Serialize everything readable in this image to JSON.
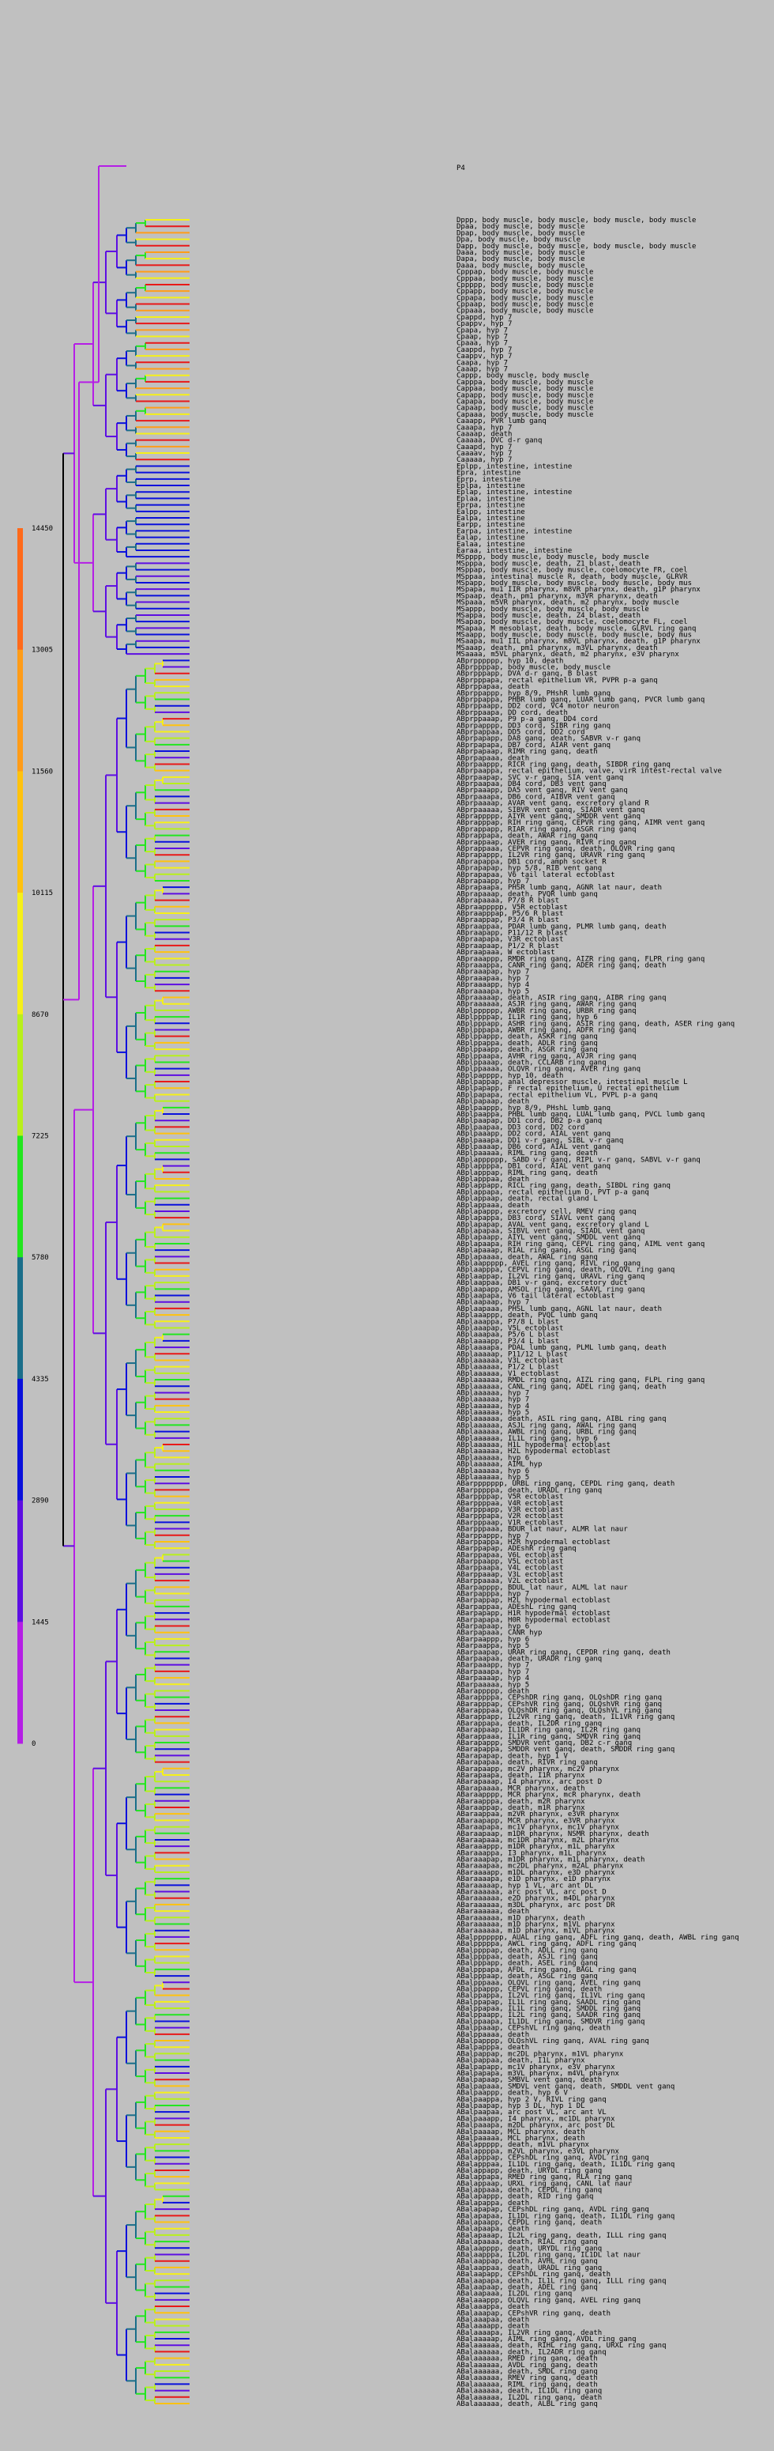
{
  "root_label": "P4",
  "legend": {
    "ticks": [
      "14450",
      "13005",
      "11560",
      "10115",
      "8670",
      "7225",
      "5780",
      "4335",
      "2890",
      "1445",
      "0"
    ],
    "bands": [
      "#ff6a1a",
      "#ff9c18",
      "#ffc20e",
      "#f5f019",
      "#b8f01b",
      "#22e61f",
      "#1a6e8a",
      "#0a10dc",
      "#5d0ee2",
      "#b51ee6"
    ]
  },
  "leaf_names": [
    "Dppp, body muscle, body muscle, body muscle, body muscle",
    "Dpaa, body muscle, body muscle",
    "Dpap, body muscle, body muscle",
    "Dpa, body muscle, body muscle",
    "Dapp, body muscle, body muscle, body muscle, body muscle",
    "Daaa, body muscle, body muscle",
    "Dapa, body muscle, body muscle",
    "Daaa, body muscle, body muscle",
    "Cpppap, body muscle, body muscle",
    "Cpppaa, body muscle, body muscle",
    "Cppppp, body muscle, body muscle",
    "Cppapp, body muscle, body muscle",
    "Cppapa, body muscle, body muscle",
    "Cppaap, body muscle, body muscle",
    "Cppaaa, body muscle, body muscle",
    "Cpappd, hyp 7",
    "Cpappv, hyp 7",
    "Cpapa, hyp 7",
    "Cpaap, hyp 7",
    "Cpaaa, hyp 7",
    "Caappd, hyp 7",
    "Caappv, hyp 7",
    "Caapa, hyp 7",
    "Caaap, hyp 7",
    "Cappp, body muscle, body muscle",
    "Capppa, body muscle, body muscle",
    "Cappaa, body muscle, body muscle",
    "Capapp, body muscle, body muscle",
    "Capapa, body muscle, body muscle",
    "Capaap, body muscle, body muscle",
    "Capaaa, body muscle, body muscle",
    "Caaapp, PVR lumb ganq",
    "Caaapa, hyp 7",
    "Caaaap, death",
    "Caaaaa, DVC d-r ganq",
    "Caaapd, hyp 7",
    "Caaaav, hyp 7",
    "Caaaaa, hyp 7",
    "Eplpp, intestine, intestine",
    "Epra, intestine",
    "Eprp, intestine",
    "Eplpa, intestine",
    "Eplap, intestine, intestine",
    "Eplaa, intestine",
    "Eprpa, intestine",
    "Ealpp, intestine",
    "Ealpa, intestine",
    "Earpp, intestine",
    "Earpa, intestine, intestine",
    "Ealap, intestine",
    "Ealaa, intestine",
    "Earaa, intestine, intestine",
    "MSpppp, body muscle, body muscle, body muscle",
    "MSpppa, body muscle, death, Z1 blast, death",
    "MSppap, body muscle, body muscle, coelomocyte FR, coel",
    "MSppaa, intestinal muscle R, death, body muscle, GLRVR",
    "MSpapp, body muscle, body muscle, body muscle, body mus",
    "MSpapa, mu1 IIR pharynx, m8VR pharynx, death, g1P pharynx",
    "MSpaap, death, pm1 pharynx, m3VR pharynx, death",
    "MSpaaa, m5VR pharynx, death, m2 pharynx, body muscle",
    "MSappp, body muscle, body muscle, body muscle",
    "MSappa, body muscle, death, Z4 blast, death",
    "MSapap, body muscle, body muscle, coelomocyte FL, coel",
    "MSapaa, M mesoblast, death, body muscle, GLRVL ring ganq",
    "MSaapp, body muscle, body muscle, body muscle, body mus",
    "MSaapa, mu1 IIL pharynx, m8VL pharynx, death, g1P pharynx",
    "MSaaap, death, pm1 pharynx, m3VL pharynx, death",
    "MSaaaa, m5VL pharynx, death, m2 pharynx, e3V pharynx",
    "ABprpppppp, hyp 10, death",
    "ABprppppap, body muscle, body muscle",
    "ABprpppapp, DVA d-r ganq, B blast",
    "ABprpppapa, rectal epithelium VR, PVPR p-a ganq",
    "ABprppapaa, death",
    "ABprppappp, hyp 8/9, PHshR lumb ganq",
    "ABprppappa, PHBR lumb ganq, LUAR lumb ganq, PVCR lumb ganq",
    "ABprppaapp, DD2 cord, VC4 motor neuron",
    "ABprppaapa, DD cord, death",
    "ABprppaaap, P9 p-a ganq, DD4 cord",
    "ABprpapppp, DD3 cord, SIBR ring ganq",
    "ABprpappaa, DD5 cord, DD2 cord",
    "ABprpapapp, DA8 ganq, death, SABVR v-r ganq",
    "ABprpapapa, DB7 cord, AIAR vent ganq",
    "ABprpapaap, RIMR ring ganq, death",
    "ABprpapaaa, death",
    "ABprpaappp, RICR ring ganq, death, SIBDR ring ganq",
    "ABprpaappa, rectal epithelium, valve, virR intest-rectal valve",
    "ABprpaapap, SVC v-r ganq, SIA vent ganq",
    "ABprpaapaa, DB4 cord, DB3 vent ganq",
    "ABprpaaapp, DA5 vent ganq, RIV vent ganq",
    "ABprpaaapa, DB6 cord, AIBVR vent ganq",
    "ABprpaaaap, AVAR vent ganq, excretory gland R",
    "ABprpaaaaa, SIBVR vent ganq, SIADR vent ganq",
    "ABprappppp, AIYR vent ganq, SMDDR vent ganq",
    "ABprapppap, RIH ring ganq, CEPVR ring ganq, AIMR vent ganq",
    "ABprappapp, RIAR ring ganq, ASGR ring ganq",
    "ABprappapa, death, AWAR ring ganq",
    "ABprappaap, AVER ring ganq, RIVR ring ganq",
    "ABprappaaa, CEPVR ring ganq, death, OLQVR ring ganq",
    "ABprapappp, IL2VR ring ganq, URAVR ring ganq",
    "ABprapappa, DB1 cord, amph socket R",
    "ABprapapap, hyp 5/8, RIB vent ganq",
    "ABprapapaa, V6 tail lateral ectoblast",
    "ABprapaapp, hyp 7",
    "ABprapaapa, PHSR lumb ganq, AGNR lat naur, death",
    "ABprapaaap, death, PVQR lumb ganq",
    "ABprapaaaa, P7/8 R blast",
    "ABpraappppp, V5R ectoblast",
    "ABpraapppap, P5/6 R blast",
    "ABpraappap, P3/4 R blast",
    "ABpraappaa, PDAR lumb ganq, PLMR lumb ganq, death",
    "ABpraapapp, P11/12 R blast",
    "ABpraapapa, V3R ectoblast",
    "ABpraapaap, P1/2 R blast",
    "ABpraapaaa, W ectoblast",
    "ABpraaappp, RMDR ring ganq, AIZR ring ganq, FLPR ring ganq",
    "ABpraaappa, CANR ring ganq, ADER ring ganq, death",
    "ABpraaapap, hyp 7",
    "ABpraaapaa, hyp 7",
    "ABpraaaapp, hyp 4",
    "ABpraaaapa, hyp 5",
    "ABpraaaaap, death, ASIR ring ganq, AIBR ring ganq",
    "ABpraaaaaa, ASJR ring ganq, AWAR ring ganq",
    "ABplpppppp, AWBR ring ganq, URBR ring ganq",
    "ABplppppap, IL1R ring ganq, hyp 6",
    "ABplpppapp, ASHR ring ganq, ASIR ring ganq, death, ASER ring ganq",
    "ABplpppapa, AWBR ring ganq, ADFR ring ganq",
    "ABplppappp, death, ASKR ring ganq",
    "ABplppappa, death, ADLR ring ganq",
    "ABplppaapp, death, ASGR ring ganq",
    "ABplppaapa, AVHR ring ganq, AVJR ring ganq",
    "ABplppaaap, death, CCLARB ring ganq",
    "ABplppaaaa, OLQVR ring ganq, AVER ring ganq",
    "ABplpapppp, hyp 10, death",
    "ABplpappap, anal depressor muscle, intestinal muscle L",
    "ABplpapapp, F rectal epithelium, U rectal epithelium",
    "ABplpapapa, rectal epithelium VL, PVPL p-a ganq",
    "ABplpapaap, death",
    "ABplpaappp, hyp 8/9, PHshL lumb ganq",
    "ABplpaappa, PHBL lumb ganq, LUAL lumb ganq, PVCL lumb ganq",
    "ABplpaapap, DD1 cord, DB2 p-a ganq",
    "ABplpaapaa, DD3 cord, DD2 cord",
    "ABplpaaapp, DD2 cord, AIAL vent ganq",
    "ABplpaaapa, DD1 v-r ganq, SIBL v-r ganq",
    "ABplpaaaap, DB6 cord, AIAL vent ganq",
    "ABplpaaaaa, RIML ring ganq, death",
    "ABplapppppp, SABD v-r ganq, RIPL v-r ganq, SABVL v-r ganq",
    "ABplappppa, DB1 cord, AIAL vent ganq",
    "ABplapppap, RIML ring ganq, death",
    "ABplapppaa, death",
    "ABplappapp, RICL ring ganq, death, SIBDL ring ganq",
    "ABplappapa, rectal epithelium D, PVT p-a ganq",
    "ABplappaap, death, rectal gland L",
    "ABplappaaa, death",
    "ABplapappp, excretory cell, RMEV ring ganq",
    "ABplapappa, DB3 cord, SIAVL vent ganq",
    "ABplapapap, AVAL vent ganq, excretory gland L",
    "ABplapapaa, SIBVL vent ganq, SIADL vent ganq",
    "ABplapaapp, AIYL vent ganq, SMDDL vent ganq",
    "ABplapaapa, RIH ring ganq, CEPVL ring ganq, AIML vent ganq",
    "ABplapaaap, RIAL ring ganq, ASGL ring ganq",
    "ABplapaaaa, death, AWAL ring ganq",
    "ABplaappppp, AVEL ring ganq, RIVL ring ganq",
    "ABplaapppa, CEPVL ring ganq, death, OLQVL ring ganq",
    "ABplaappap, IL2VL ring ganq, URAVL ring ganq",
    "ABplaappaa, DB1 v-r ganq, excretory duct",
    "ABplaapapp, AMSOL ring ganq, SAAVL ring ganq",
    "ABplaapapa, V6 tail lateral ectoblast",
    "ABplaapaap, hyp 7",
    "ABplaapaaa, PHSL lumb ganq, AGNL lat naur, death",
    "ABplaaappp, death, PVQL lumb ganq",
    "ABplaaappa, P7/8 L blast",
    "ABplaaapap, V5L ectoblast",
    "ABplaaapaa, P5/6 L blast",
    "ABplaaaapp, P3/4 L blast",
    "ABplaaaapa, PDAL lumb ganq, PLML lumb ganq, death",
    "ABplaaaaap, P11/12 L blast",
    "ABplaaaaaa, V3L ectoblast",
    "ABplaaaaaa, P1/2 L blast",
    "ABplaaaaaa, V1 ectoblast",
    "ABplaaaaaa, RMDL ring ganq, AIZL ring ganq, FLPL ring ganq",
    "ABplaaaaaa, CANL ring ganq, ADEL ring ganq, death",
    "ABplaaaaaa, hyp 7",
    "ABplaaaaaa, hyp 7",
    "ABplaaaaaa, hyp 4",
    "ABplaaaaaa, hyp 5",
    "ABplaaaaaa, death, ASIL ring ganq, AIBL ring ganq",
    "ABplaaaaaa, ASJL ring ganq, AWAL ring ganq",
    "ABplaaaaaa, AWBL ring ganq, URBL ring ganq",
    "ABplaaaaaa, IL1L ring ganq, hyp 6",
    "ABplaaaaaa, H1L hypodermal ectoblast",
    "ABplaaaaaa, H2L hypodermal ectoblast",
    "ABplaaaaaa, hyp 6",
    "ABplaaaaaa, AIML hyp",
    "ABplaaaaaa, hyp 6",
    "ABplaaaaaa, hyp 5",
    "ABarppppppp, URBL ring ganq, CEPDL ring ganq, death",
    "ABarpppppa, death, URADL ring ganq",
    "ABarppppap, V5R ectoblast",
    "ABarppppaa, V4R ectoblast",
    "ABarpppapp, V3R ectoblast",
    "ABarpppapa, V2R ectoblast",
    "ABarpppaap, V1R ectoblast",
    "ABarpppaaa, BDUR lat naur, ALMR lat naur",
    "ABarppappp, hyp 7",
    "ABarppappa, H2R hypodermal ectoblast",
    "ABarppapap, ADEshR ring ganq",
    "ABarppapaa, V6L ectoblast",
    "ABarppaapp, V5L ectoblast",
    "ABarppaapa, V4L ectoblast",
    "ABarppaaap, V3L ectoblast",
    "ABarppaaaa, V2L ectoblast",
    "ABarpapppp, BDUL lat naur, ALML lat naur",
    "ABarpapppa, hyp 7",
    "ABarpappap, H2L hypodermal ectoblast",
    "ABarpappaa, ADEshL ring ganq",
    "ABarpapapp, H1R hypodermal ectoblast",
    "ABarpapapa, H0R hypodermal ectoblast",
    "ABarpapaap, hyp 6",
    "ABarpapaaa, CANR hyp",
    "ABarpaappp, hyp 6",
    "ABarpaappa, hyp 5",
    "ABarpaapap, URAR ring ganq, CEPDR ring ganq, death",
    "ABarpaapaa, death, URADR ring ganq",
    "ABarpaaapp, hyp 7",
    "ABarpaaapa, hyp 7",
    "ABarpaaaap, hyp 4",
    "ABarpaaaaa, hyp 5",
    "ABarappppp, death",
    "ABarappppa, CEPshDR ring ganq, OLQshDR ring ganq",
    "ABarapppap, CEPshVR ring ganq, OLQshVR ring ganq",
    "ABarapppaa, OLQshDR ring ganq, OLQshVL ring ganq",
    "ABarappapp, IL2VR ring ganq, death, IL1VR ring ganq",
    "ABarappapa, death, IL2DR ring ganq",
    "ABarappaap, IL1DR ring ganq, IL2R ring ganq",
    "ABarappaaa, IL1R ring ganq, SMDVR ring ganq",
    "ABarapappp, SMDVR vent ganq, DB2 c-r ganq",
    "ABarapappa, SMDDR vent ganq, death, SMDDR ring ganq",
    "ABarapapap, death, hyp 1 V",
    "ABarapapaa, death, RIVR ring ganq",
    "ABarapaapp, mc2V pharynx, mc2V pharynx",
    "ABarapaapa, death, I1R pharynx",
    "ABarapaaap, I4 pharynx, arc post D",
    "ABarapaaaa, MCR pharynx, death",
    "ABaraapppp, MCR pharynx, mcR pharynx, death",
    "ABaraapppa, death, m2R pharynx",
    "ABaraappap, death, m1R pharynx",
    "ABaraappaa, m2VR  pharynx, e3VR pharynx",
    "ABaraapapp, MCR  pharynx, e3VR pharynx",
    "ABaraapapa, mc1V pharynx, mc1V pharynx",
    "ABaraapaap, m1DR  pharynx, NSMR pharynx, death",
    "ABaraapaaa, mc1DR  pharynx, m2L  pharynx",
    "ABaraaappp, m1DR  pharynx, m1L pharynx",
    "ABaraaappa, I3 pharynx, m1L pharynx",
    "ABaraaapap, m1DR pharynx, m1L pharynx, death",
    "ABaraaapaa, mc2DL pharynx, m2AL pharynx",
    "ABaraaaapp, m1DL pharynx, e3D pharynx",
    "ABaraaaapa, e1D pharynx, e1D pharynx",
    "ABaraaaaap, hyp 1 VL, arc ant DL",
    "ABaraaaaaa, arc post VL, arc post D",
    "ABaraaaaaa, e2D pharynx, m4DL pharynx",
    "ABaraaaaaa, m3DL pharynx, arc post DR",
    "ABaraaaaaa, death",
    "ABaraaaaaa, m1D pharynx, death",
    "ABaraaaaaa, m1D pharynx, m1VL pharynx",
    "ABaraaaaaa, m1D pharynx, m1VL pharynx",
    "ABalppppppp, AUAL ring ganq, ADFL ring ganq, death, AWBL  ring ganq",
    "ABalpppppa, AWCL ring ganq, ADFL ring ganq",
    "ABalppppap, death, ADLL ring ganq",
    "ABalppppaa, death, ASJL ring ganq",
    "ABalpppapp, death, ASEL ring ganq",
    "ABalpppapa, AFDL ring ganq, BAGL ring ganq",
    "ABalpppaap, death, ASGL ring ganq",
    "ABalpppaaa, OLQVL ring ganq, AVEL ring ganq",
    "ABalppappp, CEPVL ring ganq, death",
    "ABalppappa, IL2VL ring ganq, IL1VL ring ganq",
    "ABalppapap, IL1L ring ganq, SAADL ring ganq",
    "ABalppapaa, IL1L ring ganq, SMDDL ring ganq",
    "ABalppaapp, IL2L ring ganq, SAADR ring ganq",
    "ABalppaapa, IL1DL ring ganq, SMDVR ring ganq",
    "ABalppaaap, CEPshVL ring ganq, death",
    "ABalppaaaa, death",
    "ABalpapppp, OLQshVL ring ganq, AVAL ring ganq",
    "ABalpapppa, death",
    "ABalpappap, mc2DL pharynx, m1VL pharynx",
    "ABalpappaa, death, I1L pharynx",
    "ABalpapapp, mc1V pharynx, e3V pharynx",
    "ABalpapapa, m3VL pharynx, m4VL pharynx",
    "ABalpapaap, SMBVL vent ganq, death",
    "ABalpapaaa, SMDVL vent ganq, death, SMDDL vent ganq",
    "ABalpaappp, death, hyp 6 V",
    "ABalpaappa, hyp 2 V, RIVL ring ganq",
    "ABalpaapap, hyp 3 DL, hyp 1 DL",
    "ABalpaapaa, arc post VL, arc ant VL",
    "ABalpaaapp, I4 pharynx, mc1DL pharynx",
    "ABalpaaapa, m2DL pharynx, arc post DL",
    "ABalpaaaap, MCL pharynx, death",
    "ABalpaaaaa, MCL pharynx, death",
    "ABalappppp, death, m1VL pharynx",
    "ABalappppa, m2VL pharynx, e3VL pharynx",
    "ABalapppap, CEPshDL ring ganq, AVDL ring ganq",
    "ABalapppaa, IL1DL ring ganq, death, IL1DL ring ganq",
    "ABalappapp, death, URYDL ring ganq",
    "ABalappapa, RMED ring ganq, RLA ring ganq",
    "ABalappaap, URXL ring ganq, CANL lat naur",
    "ABalappaaa, death, CEPDL ring ganq",
    "ABalapappp, death, RID ring ganq",
    "ABalapappa, death",
    "ABalapapap, CEPshDL ring ganq, AVDL ring ganq",
    "ABalapapaa, IL1DL ring ganq, death, IL1DL ring ganq",
    "ABalapaapp, CEPDL ring ganq, death",
    "ABalapaapa, death",
    "ABalapaaap, IL2L ring ganq, death, ILLL ring ganq",
    "ABalapaaaa, death, RIAL ring ganq",
    "ABalaapppp, death, URYDL ring ganq",
    "ABalaapppa, IL2DL ring ganq, IL1DL lat naur",
    "ABalaappap, death, AVHL ring ganq",
    "ABalaappaa, death, URADL ring ganq",
    "ABalaapapp, CEPshDL ring ganq, death",
    "ABalaapapa, death, IL1L ring ganq, ILLL ring ganq",
    "ABalaapaap, death, ADEL ring ganq",
    "ABalaapaaa, IL2DL ring ganq",
    "ABalaaappp, OLQVL ring ganq, AVEL ring ganq",
    "ABalaaappa, death",
    "ABalaaapap, CEPshVR ring ganq, death",
    "ABalaaapaa, death",
    "ABalaaaapp, death",
    "ABalaaaapa, IL2VR ring ganq, death",
    "ABalaaaaap, AIML ring ganq, AVDL ring ganq",
    "ABalaaaaaa, death, RIHL ring ganq, URXL ring ganq",
    "ABalaaaaaa, death, IL2ADR ring ganq",
    "ABalaaaaaa, RMED ring ganq, death",
    "ABalaaaaaa, AVDL ring ganq, death",
    "ABalaaaaaa, death, SMDL ring ganq",
    "ABalaaaaaa, RMEV ring ganq, death",
    "ABalaaaaaa, RIML ring ganq, death",
    "ABalaaaaaa, death, IL1DL ring ganq",
    "ABalaaaaaa, IL2DL ring ganq, death",
    "ABalaaaaaa, death, ALBL ring ganq"
  ],
  "series_colors": {
    "c0": "#b51ee6",
    "c1": "#5d0ee2",
    "c2": "#0a10dc",
    "c3": "#1a6e8a",
    "c4": "#22e61f",
    "c5": "#b8f01b",
    "c6": "#f5f019",
    "c7": "#ffc20e",
    "c8": "#ff9c18",
    "c9": "#ff6a1a",
    "red": "#e81818"
  }
}
